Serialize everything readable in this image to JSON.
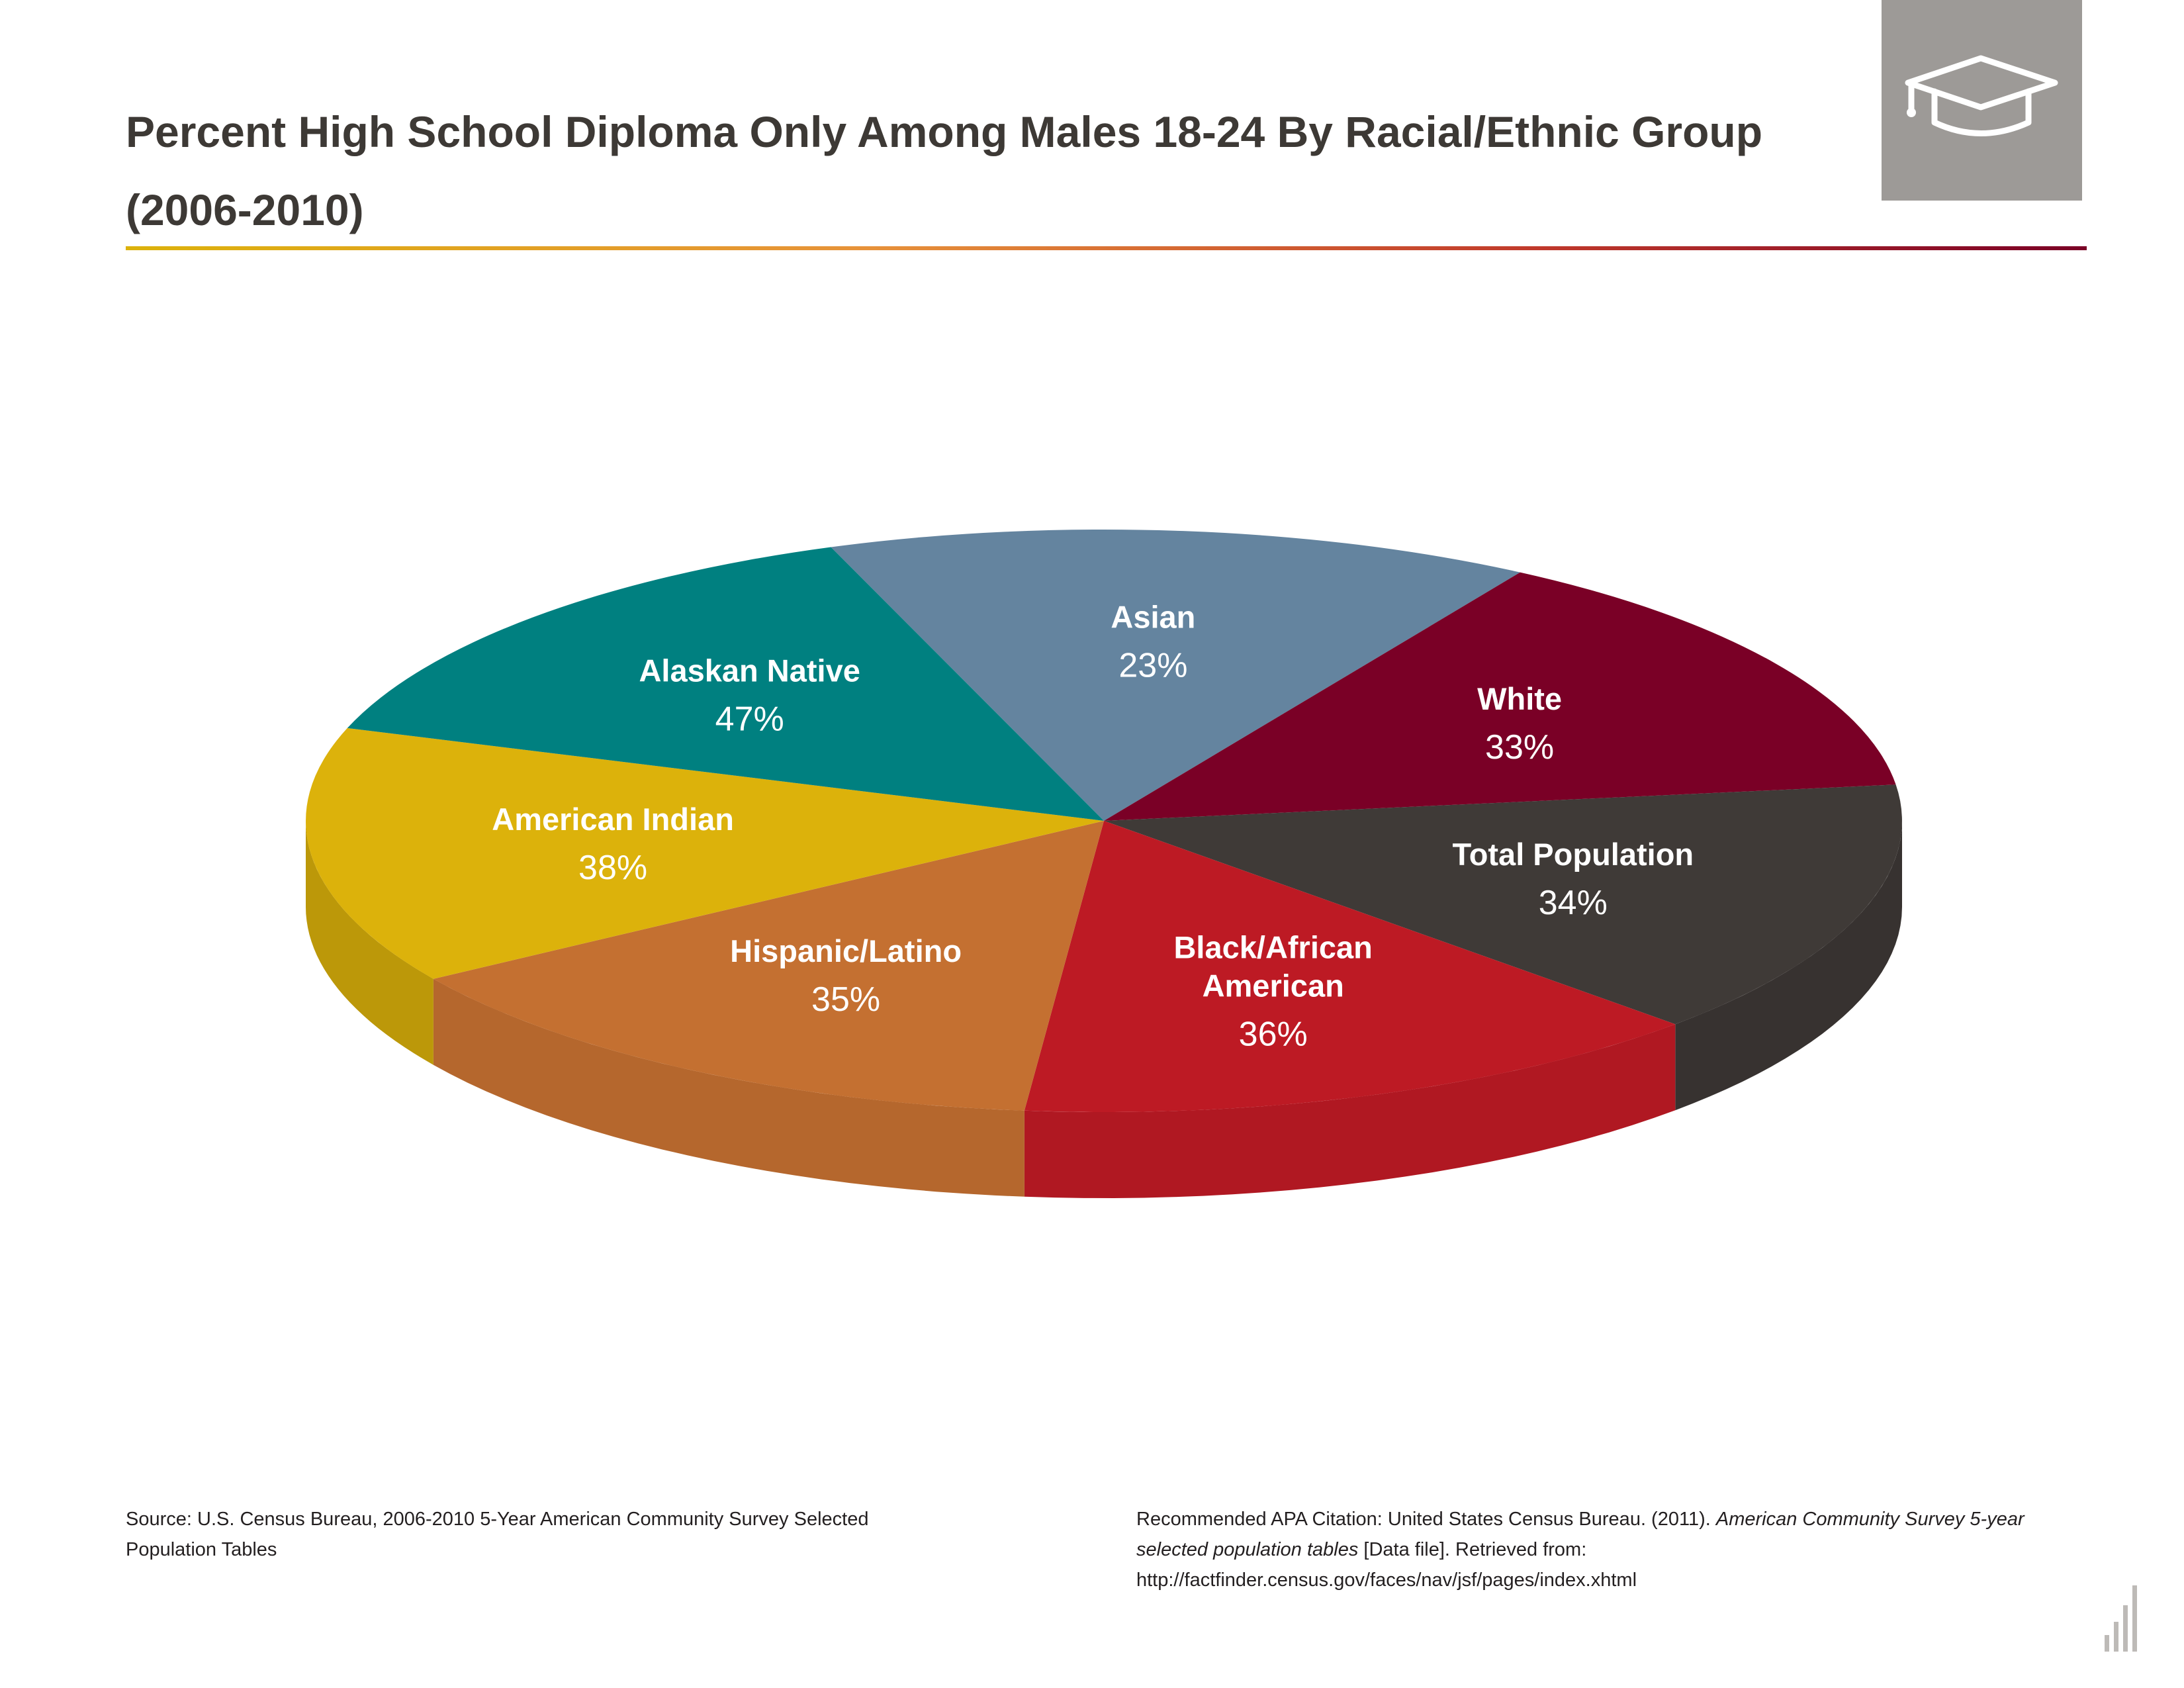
{
  "title": "Percent High School Diploma Only Among Males 18-24 By Racial/Ethnic Group (2006-2010)",
  "logo": {
    "icon": "graduation-cap-icon",
    "background": "#9d9a97"
  },
  "chart_data": {
    "type": "pie",
    "title": "Percent High School Diploma Only Among Males 18-24 By Racial/Ethnic Group (2006-2010)",
    "style": "3d",
    "unit": "%",
    "note": "Each slice is an equal-size wedge; the printed percentage is the value for that group.",
    "slices": [
      {
        "label": "Asian",
        "value": 23,
        "value_text": "23%",
        "color": "#64849f"
      },
      {
        "label": "White",
        "value": 33,
        "value_text": "33%",
        "color": "#7a0026"
      },
      {
        "label": "Total Population",
        "value": 34,
        "value_text": "34%",
        "color": "#3f3a37"
      },
      {
        "label": "Black/African American",
        "label_lines": [
          "Black/African",
          "American"
        ],
        "value": 36,
        "value_text": "36%",
        "color": "#bd1a24"
      },
      {
        "label": "Hispanic/Latino",
        "value": 35,
        "value_text": "35%",
        "color": "#c47031"
      },
      {
        "label": "American Indian",
        "value": 38,
        "value_text": "38%",
        "color": "#dcb20b"
      },
      {
        "label": "Alaskan Native",
        "value": 47,
        "value_text": "47%",
        "color": "#008080"
      }
    ]
  },
  "footer": {
    "source": "Source: U.S. Census Bureau, 2006-2010 5-Year American Community Survey Selected Population Tables",
    "citation_prefix": "Recommended APA Citation: United States Census Bureau. (2011). ",
    "citation_title": "American Community Survey 5-year selected population tables",
    "citation_suffix": " [Data file]. Retrieved from: http://factfinder.census.gov/faces/nav/jsf/pages/index.xhtml"
  },
  "colors": {
    "title_text": "#3d3935",
    "rule_start": "#dcb20b",
    "rule_end": "#7a0026"
  }
}
